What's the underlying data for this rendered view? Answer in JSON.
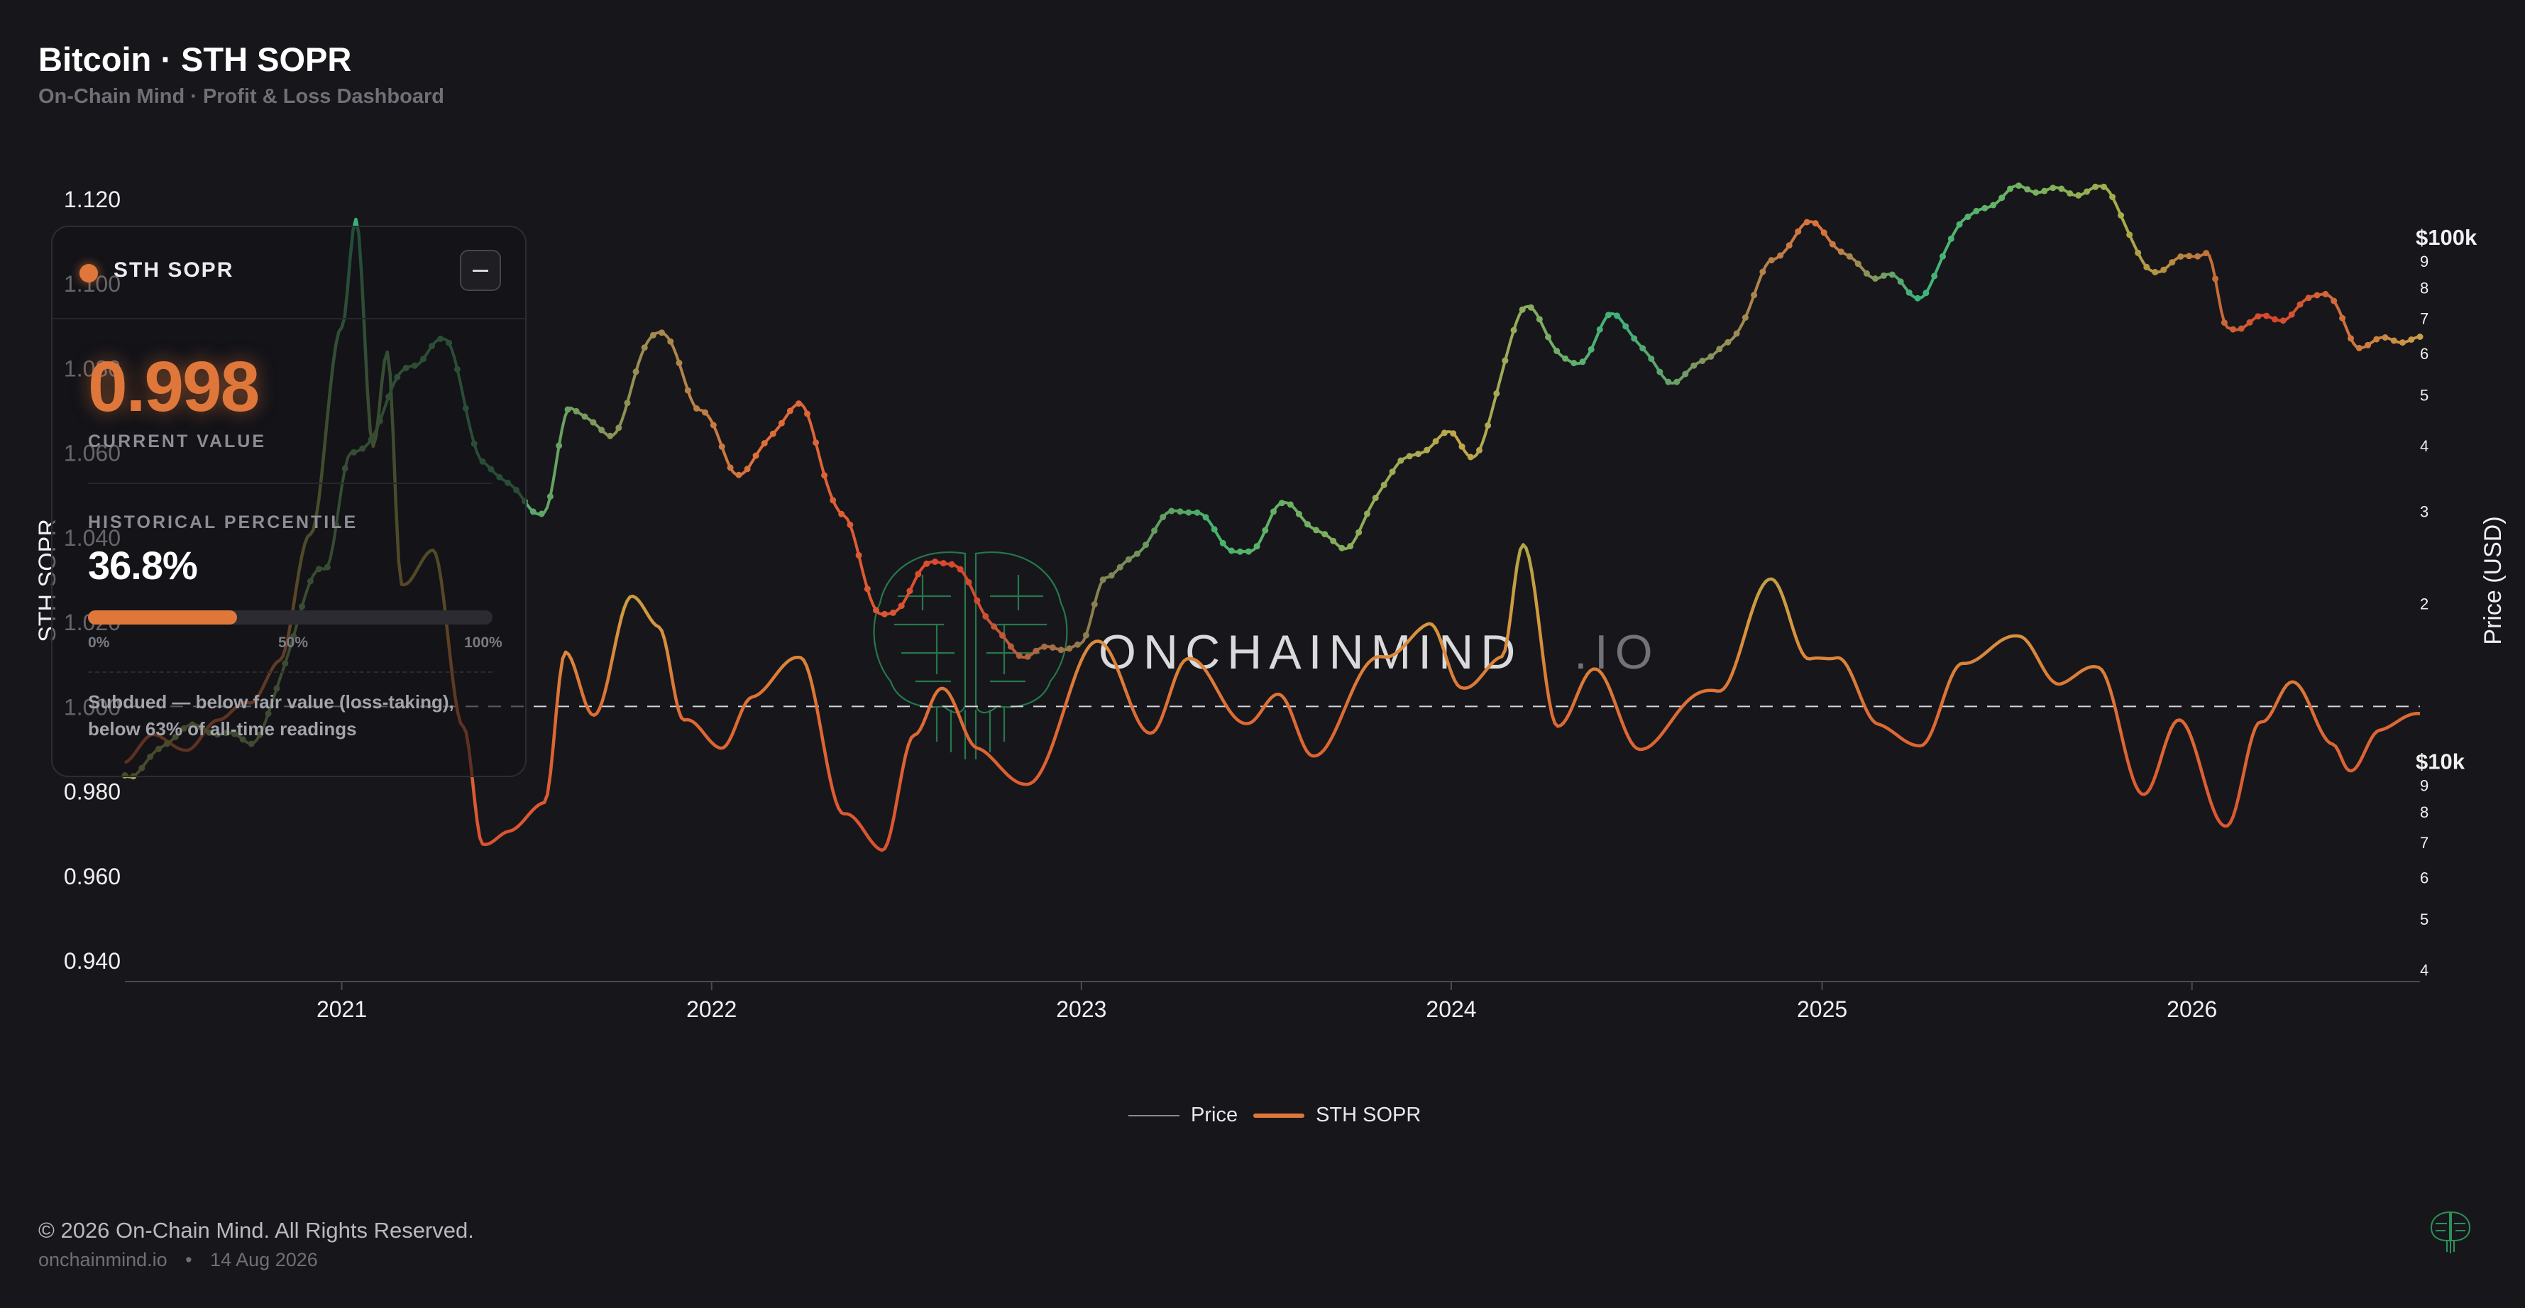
{
  "header": {
    "title": "Bitcoin · STH SOPR",
    "subtitle": "On-Chain Mind · Profit & Loss Dashboard"
  },
  "card": {
    "name": "STH SOPR",
    "value": "0.998",
    "value_label": "CURRENT VALUE",
    "percentile_label": "HISTORICAL PERCENTILE",
    "percentile": "36.8%",
    "percentile_fraction": 0.368,
    "bar_labels": [
      "0%",
      "50%",
      "100%"
    ],
    "description": "Subdued — below fair value (loss-taking), below 63% of all-time readings",
    "accent_color": "#e0773a",
    "minimize_icon": "minus-icon"
  },
  "watermark": {
    "text_main": "ONCHAINMIND",
    "text_suffix": ".IO",
    "icon": "brain-circuit-icon"
  },
  "legend": {
    "items": [
      {
        "label": "Price",
        "color": "#8a8a92"
      },
      {
        "label": "STH SOPR",
        "color": "#e0773a"
      }
    ]
  },
  "footer": {
    "copyright": "© 2026 On-Chain Mind. All Rights Reserved.",
    "site": "onchainmind.io",
    "separator": "•",
    "date": "14 Aug 2026",
    "logo_icon": "brain-logo-icon"
  },
  "chart_data": {
    "type": "line",
    "x_range": [
      "2020-06-01",
      "2026-08-14"
    ],
    "x_ticks": [
      "2021",
      "2022",
      "2023",
      "2024",
      "2025",
      "2026"
    ],
    "left_axis": {
      "label": "STH SOPR",
      "range": [
        0.935,
        1.125
      ],
      "ticks": [
        "0.940",
        "0.960",
        "0.980",
        "1.000",
        "1.020",
        "1.040",
        "1.060",
        "1.080",
        "1.100",
        "1.120"
      ],
      "reference_line": 1.0
    },
    "right_axis": {
      "label": "Price (USD)",
      "scale": "log",
      "range": [
        3800,
        130000
      ],
      "major_ticks": [
        {
          "value": 10000,
          "label": "$10k"
        },
        {
          "value": 100000,
          "label": "$100k"
        }
      ],
      "minor_ticks": [
        {
          "value": 4000,
          "label": "4"
        },
        {
          "value": 5000,
          "label": "5"
        },
        {
          "value": 6000,
          "label": "6"
        },
        {
          "value": 7000,
          "label": "7"
        },
        {
          "value": 8000,
          "label": "8"
        },
        {
          "value": 9000,
          "label": "9"
        },
        {
          "value": 20000,
          "label": "2"
        },
        {
          "value": 30000,
          "label": "3"
        },
        {
          "value": 40000,
          "label": "4"
        },
        {
          "value": 50000,
          "label": "5"
        },
        {
          "value": 60000,
          "label": "6"
        },
        {
          "value": 70000,
          "label": "7"
        },
        {
          "value": 80000,
          "label": "8"
        },
        {
          "value": 90000,
          "label": "9"
        }
      ]
    },
    "series": [
      {
        "name": "STH SOPR",
        "axis": "left",
        "points": [
          [
            "2020-06-01",
            0.986
          ],
          [
            "2020-07-01",
            0.992
          ],
          [
            "2020-08-01",
            0.99
          ],
          [
            "2020-09-01",
            0.996
          ],
          [
            "2020-10-01",
            1.002
          ],
          [
            "2020-11-01",
            1.012
          ],
          [
            "2020-12-01",
            1.04
          ],
          [
            "2021-01-01",
            1.09
          ],
          [
            "2021-01-15",
            1.115
          ],
          [
            "2021-02-01",
            1.06
          ],
          [
            "2021-02-15",
            1.082
          ],
          [
            "2021-03-01",
            1.028
          ],
          [
            "2021-04-01",
            1.038
          ],
          [
            "2021-05-01",
            0.995
          ],
          [
            "2021-05-20",
            0.968
          ],
          [
            "2021-06-15",
            0.972
          ],
          [
            "2021-07-20",
            0.976
          ],
          [
            "2021-08-10",
            1.012
          ],
          [
            "2021-09-07",
            0.998
          ],
          [
            "2021-10-15",
            1.025
          ],
          [
            "2021-11-10",
            1.02
          ],
          [
            "2021-12-05",
            0.998
          ],
          [
            "2022-01-10",
            0.99
          ],
          [
            "2022-02-10",
            1.003
          ],
          [
            "2022-03-30",
            1.01
          ],
          [
            "2022-05-12",
            0.975
          ],
          [
            "2022-06-18",
            0.966
          ],
          [
            "2022-07-20",
            0.995
          ],
          [
            "2022-08-15",
            1.004
          ],
          [
            "2022-09-20",
            0.99
          ],
          [
            "2022-11-09",
            0.98
          ],
          [
            "2023-01-15",
            1.016
          ],
          [
            "2023-03-10",
            0.995
          ],
          [
            "2023-04-15",
            1.01
          ],
          [
            "2023-06-15",
            0.996
          ],
          [
            "2023-07-15",
            1.002
          ],
          [
            "2023-08-17",
            0.99
          ],
          [
            "2023-10-25",
            1.012
          ],
          [
            "2023-12-10",
            1.018
          ],
          [
            "2024-01-10",
            1.004
          ],
          [
            "2024-02-20",
            1.012
          ],
          [
            "2024-03-12",
            1.038
          ],
          [
            "2024-04-15",
            0.997
          ],
          [
            "2024-05-20",
            1.008
          ],
          [
            "2024-07-05",
            0.99
          ],
          [
            "2024-09-20",
            1.005
          ],
          [
            "2024-11-12",
            1.03
          ],
          [
            "2024-12-20",
            1.012
          ],
          [
            "2025-01-15",
            1.01
          ],
          [
            "2025-02-25",
            0.996
          ],
          [
            "2025-04-08",
            0.99
          ],
          [
            "2025-05-20",
            1.012
          ],
          [
            "2025-07-15",
            1.016
          ],
          [
            "2025-08-25",
            1.005
          ],
          [
            "2025-10-01",
            1.008
          ],
          [
            "2025-11-15",
            0.98
          ],
          [
            "2025-12-20",
            0.997
          ],
          [
            "2026-02-05",
            0.972
          ],
          [
            "2026-03-10",
            0.995
          ],
          [
            "2026-04-10",
            1.006
          ],
          [
            "2026-05-20",
            0.99
          ],
          [
            "2026-06-05",
            0.985
          ],
          [
            "2026-07-05",
            0.996
          ],
          [
            "2026-08-14",
            0.998
          ]
        ]
      },
      {
        "name": "Price",
        "axis": "right",
        "points": [
          [
            "2020-06-01",
            9500
          ],
          [
            "2020-08-01",
            11500
          ],
          [
            "2020-10-01",
            11000
          ],
          [
            "2020-12-15",
            23000
          ],
          [
            "2021-01-10",
            38000
          ],
          [
            "2021-03-14",
            58000
          ],
          [
            "2021-04-14",
            63000
          ],
          [
            "2021-05-20",
            37000
          ],
          [
            "2021-07-20",
            30000
          ],
          [
            "2021-08-15",
            47000
          ],
          [
            "2021-09-20",
            42000
          ],
          [
            "2021-11-10",
            67000
          ],
          [
            "2021-12-20",
            47000
          ],
          [
            "2022-01-25",
            36000
          ],
          [
            "2022-03-28",
            47000
          ],
          [
            "2022-05-12",
            29000
          ],
          [
            "2022-06-18",
            19000
          ],
          [
            "2022-08-15",
            24000
          ],
          [
            "2022-11-09",
            16000
          ],
          [
            "2022-12-31",
            16500
          ],
          [
            "2023-01-25",
            23000
          ],
          [
            "2023-04-14",
            30000
          ],
          [
            "2023-06-15",
            25000
          ],
          [
            "2023-07-15",
            30500
          ],
          [
            "2023-09-15",
            26000
          ],
          [
            "2023-11-15",
            37000
          ],
          [
            "2023-12-31",
            42000
          ],
          [
            "2024-01-23",
            39000
          ],
          [
            "2024-03-14",
            72000
          ],
          [
            "2024-05-01",
            57000
          ],
          [
            "2024-06-07",
            71000
          ],
          [
            "2024-08-05",
            53000
          ],
          [
            "2024-09-30",
            63000
          ],
          [
            "2024-11-12",
            88000
          ],
          [
            "2024-12-17",
            106000
          ],
          [
            "2025-02-28",
            84000
          ],
          [
            "2025-04-08",
            77000
          ],
          [
            "2025-05-22",
            110000
          ],
          [
            "2025-07-14",
            122000
          ],
          [
            "2025-08-14",
            123000
          ],
          [
            "2025-10-06",
            124000
          ],
          [
            "2025-11-20",
            86000
          ],
          [
            "2026-01-15",
            95000
          ],
          [
            "2026-02-05",
            67000
          ],
          [
            "2026-04-01",
            70000
          ],
          [
            "2026-05-10",
            80000
          ],
          [
            "2026-06-15",
            62000
          ],
          [
            "2026-08-14",
            64000
          ]
        ]
      }
    ],
    "grid": false,
    "legend_position": "bottom-center"
  }
}
